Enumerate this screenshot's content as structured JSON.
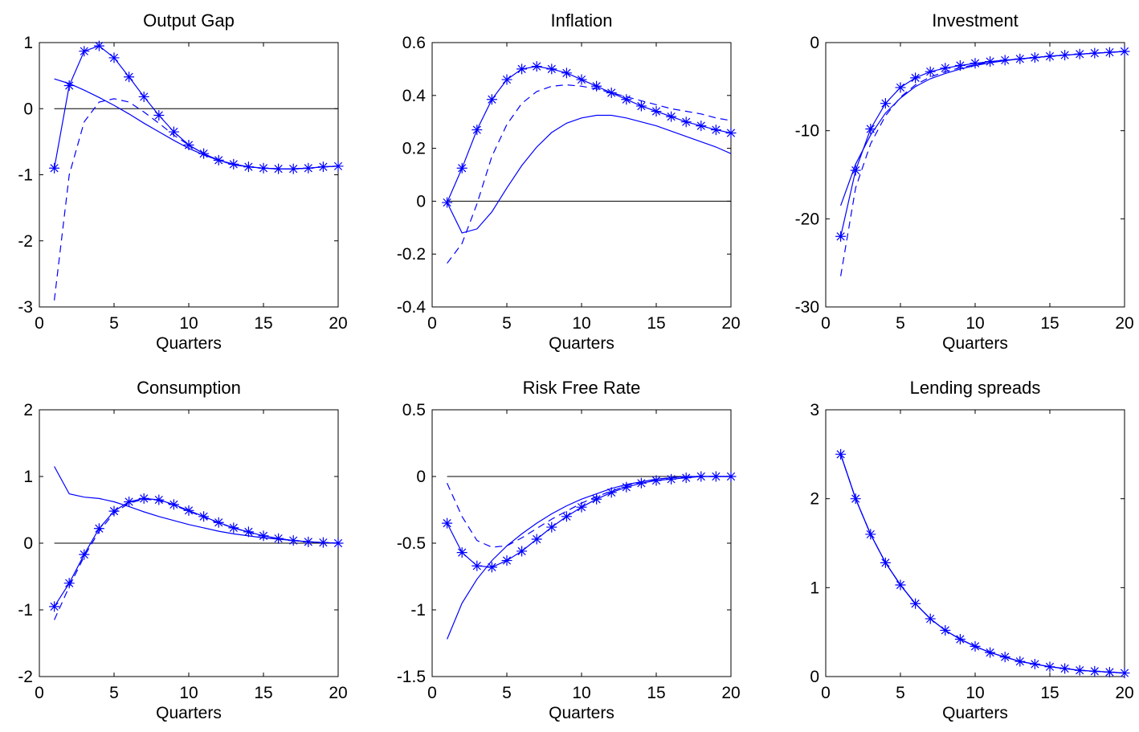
{
  "chart_data": [
    {
      "type": "line",
      "title": "Output Gap",
      "xlabel": "Quarters",
      "ylabel": "",
      "xlim": [
        0,
        20
      ],
      "ylim": [
        -3,
        1
      ],
      "xticks": [
        0,
        5,
        10,
        15,
        20
      ],
      "yticks": [
        -3,
        -2,
        -1,
        0,
        1
      ],
      "zero_line": true,
      "x": [
        1,
        2,
        3,
        4,
        5,
        6,
        7,
        8,
        9,
        10,
        11,
        12,
        13,
        14,
        15,
        16,
        17,
        18,
        19,
        20
      ],
      "series": [
        {
          "style": "solid-star",
          "values": [
            -0.9,
            0.35,
            0.87,
            0.95,
            0.77,
            0.48,
            0.18,
            -0.1,
            -0.35,
            -0.55,
            -0.68,
            -0.78,
            -0.84,
            -0.88,
            -0.9,
            -0.91,
            -0.91,
            -0.9,
            -0.88,
            -0.87
          ]
        },
        {
          "style": "dashed",
          "values": [
            -2.9,
            -1.0,
            -0.2,
            0.1,
            0.15,
            0.1,
            -0.05,
            -0.22,
            -0.4,
            -0.55,
            -0.68,
            -0.78,
            -0.85,
            -0.88,
            -0.9,
            -0.91,
            -0.91,
            -0.9,
            -0.88,
            -0.87
          ]
        },
        {
          "style": "solid",
          "values": [
            0.45,
            0.38,
            0.28,
            0.17,
            0.05,
            -0.08,
            -0.22,
            -0.35,
            -0.48,
            -0.6,
            -0.7,
            -0.78,
            -0.84,
            -0.88,
            -0.9,
            -0.91,
            -0.91,
            -0.9,
            -0.88,
            -0.87
          ]
        }
      ]
    },
    {
      "type": "line",
      "title": "Inflation",
      "xlabel": "Quarters",
      "ylabel": "",
      "xlim": [
        0,
        20
      ],
      "ylim": [
        -0.4,
        0.6
      ],
      "xticks": [
        0,
        5,
        10,
        15,
        20
      ],
      "yticks": [
        -0.4,
        -0.2,
        0,
        0.2,
        0.4,
        0.6
      ],
      "zero_line": true,
      "x": [
        1,
        2,
        3,
        4,
        5,
        6,
        7,
        8,
        9,
        10,
        11,
        12,
        13,
        14,
        15,
        16,
        17,
        18,
        19,
        20
      ],
      "series": [
        {
          "style": "solid-star",
          "values": [
            -0.005,
            0.125,
            0.27,
            0.385,
            0.46,
            0.5,
            0.51,
            0.5,
            0.485,
            0.46,
            0.435,
            0.41,
            0.385,
            0.36,
            0.34,
            0.32,
            0.3,
            0.285,
            0.27,
            0.258
          ]
        },
        {
          "style": "dashed",
          "values": [
            -0.235,
            -0.16,
            -0.01,
            0.17,
            0.29,
            0.37,
            0.415,
            0.435,
            0.44,
            0.435,
            0.425,
            0.41,
            0.395,
            0.38,
            0.365,
            0.35,
            0.34,
            0.33,
            0.315,
            0.305
          ]
        },
        {
          "style": "solid",
          "values": [
            -0.005,
            -0.12,
            -0.105,
            -0.04,
            0.05,
            0.135,
            0.205,
            0.26,
            0.295,
            0.315,
            0.325,
            0.325,
            0.315,
            0.3,
            0.285,
            0.265,
            0.245,
            0.225,
            0.205,
            0.18
          ]
        }
      ]
    },
    {
      "type": "line",
      "title": "Investment",
      "xlabel": "Quarters",
      "ylabel": "",
      "xlim": [
        0,
        20
      ],
      "ylim": [
        -30,
        0
      ],
      "xticks": [
        0,
        5,
        10,
        15,
        20
      ],
      "yticks": [
        -30,
        -20,
        -10,
        0
      ],
      "zero_line": false,
      "x": [
        1,
        2,
        3,
        4,
        5,
        6,
        7,
        8,
        9,
        10,
        11,
        12,
        13,
        14,
        15,
        16,
        17,
        18,
        19,
        20
      ],
      "series": [
        {
          "style": "solid-star",
          "values": [
            -22,
            -14.5,
            -9.8,
            -6.9,
            -5.1,
            -4.0,
            -3.3,
            -2.9,
            -2.6,
            -2.35,
            -2.15,
            -2.0,
            -1.85,
            -1.7,
            -1.55,
            -1.42,
            -1.3,
            -1.2,
            -1.1,
            -1.0
          ]
        },
        {
          "style": "dashed",
          "values": [
            -26.5,
            -16.5,
            -11.5,
            -8.3,
            -6.2,
            -4.8,
            -3.9,
            -3.3,
            -2.85,
            -2.5,
            -2.2,
            -2.0,
            -1.85,
            -1.7,
            -1.55,
            -1.42,
            -1.3,
            -1.2,
            -1.1,
            -1.0
          ]
        },
        {
          "style": "solid",
          "values": [
            -18.5,
            -13.8,
            -10.5,
            -8.0,
            -6.3,
            -5.0,
            -4.1,
            -3.5,
            -3.0,
            -2.6,
            -2.3,
            -2.05,
            -1.85,
            -1.7,
            -1.55,
            -1.42,
            -1.3,
            -1.2,
            -1.1,
            -1.0
          ]
        }
      ]
    },
    {
      "type": "line",
      "title": "Consumption",
      "xlabel": "Quarters",
      "ylabel": "",
      "xlim": [
        0,
        20
      ],
      "ylim": [
        -2,
        2
      ],
      "xticks": [
        0,
        5,
        10,
        15,
        20
      ],
      "yticks": [
        -2,
        -1,
        0,
        1,
        2
      ],
      "zero_line": true,
      "x": [
        1,
        2,
        3,
        4,
        5,
        6,
        7,
        8,
        9,
        10,
        11,
        12,
        13,
        14,
        15,
        16,
        17,
        18,
        19,
        20
      ],
      "series": [
        {
          "style": "solid-star",
          "values": [
            -0.95,
            -0.6,
            -0.17,
            0.22,
            0.48,
            0.62,
            0.67,
            0.65,
            0.58,
            0.49,
            0.4,
            0.31,
            0.23,
            0.17,
            0.11,
            0.07,
            0.04,
            0.02,
            0.01,
            0.0
          ]
        },
        {
          "style": "dashed",
          "values": [
            -1.15,
            -0.65,
            -0.2,
            0.18,
            0.45,
            0.6,
            0.66,
            0.64,
            0.57,
            0.48,
            0.39,
            0.3,
            0.23,
            0.16,
            0.11,
            0.07,
            0.04,
            0.02,
            0.01,
            0.0
          ]
        },
        {
          "style": "solid",
          "values": [
            1.15,
            0.74,
            0.69,
            0.67,
            0.62,
            0.55,
            0.47,
            0.4,
            0.34,
            0.28,
            0.23,
            0.18,
            0.14,
            0.11,
            0.08,
            0.06,
            0.04,
            0.02,
            0.01,
            0.0
          ]
        }
      ]
    },
    {
      "type": "line",
      "title": "Risk Free Rate",
      "xlabel": "Quarters",
      "ylabel": "",
      "xlim": [
        0,
        20
      ],
      "ylim": [
        -1.5,
        0.5
      ],
      "xticks": [
        0,
        5,
        10,
        15,
        20
      ],
      "yticks": [
        -1.5,
        -1,
        -0.5,
        0,
        0.5
      ],
      "zero_line": true,
      "x": [
        1,
        2,
        3,
        4,
        5,
        6,
        7,
        8,
        9,
        10,
        11,
        12,
        13,
        14,
        15,
        16,
        17,
        18,
        19,
        20
      ],
      "series": [
        {
          "style": "solid-star",
          "values": [
            -0.35,
            -0.57,
            -0.67,
            -0.68,
            -0.63,
            -0.56,
            -0.47,
            -0.38,
            -0.3,
            -0.23,
            -0.17,
            -0.12,
            -0.08,
            -0.05,
            -0.03,
            -0.02,
            -0.01,
            0.0,
            0.0,
            0.0
          ]
        },
        {
          "style": "dashed",
          "values": [
            -0.05,
            -0.3,
            -0.48,
            -0.53,
            -0.52,
            -0.46,
            -0.39,
            -0.32,
            -0.26,
            -0.2,
            -0.15,
            -0.11,
            -0.07,
            -0.04,
            -0.02,
            -0.01,
            0.0,
            0.0,
            0.0,
            0.0
          ]
        },
        {
          "style": "solid",
          "values": [
            -1.22,
            -0.95,
            -0.77,
            -0.63,
            -0.52,
            -0.43,
            -0.35,
            -0.28,
            -0.22,
            -0.17,
            -0.13,
            -0.09,
            -0.06,
            -0.04,
            -0.02,
            -0.01,
            0.0,
            0.0,
            0.0,
            0.0
          ]
        }
      ]
    },
    {
      "type": "line",
      "title": "Lending spreads",
      "xlabel": "Quarters",
      "ylabel": "",
      "xlim": [
        0,
        20
      ],
      "ylim": [
        0,
        3
      ],
      "xticks": [
        0,
        5,
        10,
        15,
        20
      ],
      "yticks": [
        0,
        1,
        2,
        3
      ],
      "zero_line": false,
      "x": [
        1,
        2,
        3,
        4,
        5,
        6,
        7,
        8,
        9,
        10,
        11,
        12,
        13,
        14,
        15,
        16,
        17,
        18,
        19,
        20
      ],
      "series": [
        {
          "style": "solid-star",
          "values": [
            2.5,
            2.0,
            1.6,
            1.28,
            1.03,
            0.82,
            0.65,
            0.52,
            0.42,
            0.34,
            0.27,
            0.22,
            0.17,
            0.14,
            0.11,
            0.09,
            0.07,
            0.06,
            0.05,
            0.04
          ]
        },
        {
          "style": "dashed",
          "values": [
            2.5,
            2.0,
            1.6,
            1.28,
            1.03,
            0.82,
            0.65,
            0.52,
            0.42,
            0.34,
            0.27,
            0.22,
            0.17,
            0.14,
            0.11,
            0.09,
            0.07,
            0.06,
            0.05,
            0.04
          ]
        },
        {
          "style": "solid",
          "values": [
            2.5,
            2.0,
            1.6,
            1.28,
            1.03,
            0.82,
            0.65,
            0.52,
            0.42,
            0.34,
            0.27,
            0.22,
            0.17,
            0.14,
            0.11,
            0.09,
            0.07,
            0.06,
            0.05,
            0.04
          ]
        }
      ]
    }
  ],
  "colors": {
    "series": "#0000ff",
    "axes": "#000000",
    "zero_line": "#000000"
  }
}
